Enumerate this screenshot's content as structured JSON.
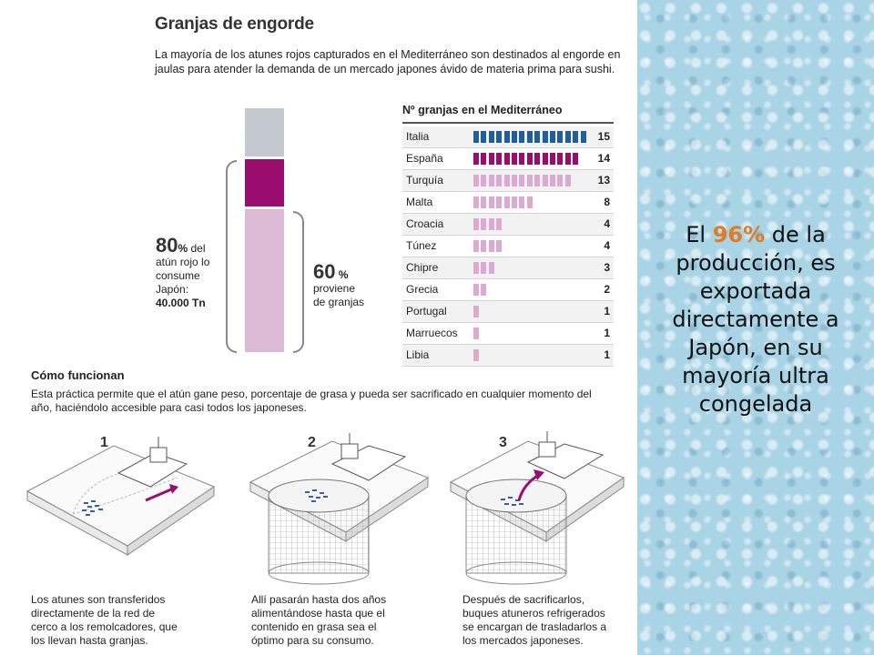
{
  "infographic": {
    "title": "Granjas de engorde",
    "intro": "La mayoría de los atunes rojos capturados en el Mediterráneo son destinados al engorde en jaulas para atender la demanda de un mercado japones ávido de materia prima para sushi.",
    "stack": {
      "left_note": {
        "value": "80",
        "pct": "%",
        "rest1": " del",
        "line2": "atún rojo lo",
        "line3": "consume",
        "line4": "Japón:",
        "line5": "40.000 Tn"
      },
      "right_note": {
        "value": "60",
        "pct": "%",
        "line2": "proviene",
        "line3": "de granjas"
      },
      "colors": {
        "top": "#c4c8cf",
        "middle": "#9a0d6e",
        "bottom": "#dcbad5"
      }
    },
    "farms": {
      "title": "Nº granjas en el Mediterráneo",
      "rows": [
        {
          "country": "Italia",
          "count": 15,
          "label": "15",
          "color": "#1f5f9e"
        },
        {
          "country": "España",
          "count": 14,
          "label": "14",
          "color": "#9a0d6e"
        },
        {
          "country": "Turquía",
          "count": 13,
          "label": "13",
          "color": "#dcaad0"
        },
        {
          "country": "Malta",
          "count": 8,
          "label": "8",
          "color": "#dcaad0"
        },
        {
          "country": "Croacia",
          "count": 4,
          "label": "4",
          "color": "#dcaad0"
        },
        {
          "country": "Túnez",
          "count": 4,
          "label": "4",
          "color": "#dcaad0"
        },
        {
          "country": "Chipre",
          "count": 3,
          "label": "3",
          "color": "#dcaad0"
        },
        {
          "country": "Grecia",
          "count": 2,
          "label": "2",
          "color": "#dcaad0"
        },
        {
          "country": "Portugal",
          "count": 1,
          "label": "1",
          "color": "#dcaad0"
        },
        {
          "country": "Marruecos",
          "count": 1,
          "label": "1",
          "color": "#dcaad0"
        },
        {
          "country": "Libia",
          "count": 1,
          "label": "1",
          "color": "#dcaad0"
        }
      ]
    },
    "how": {
      "title": "Cómo funcionan",
      "text": "Esta práctica permite que el atún gane peso, porcentaje de grasa y pueda ser sacrificado en cualquier momento del año, haciéndolo accesible para casi todos los japoneses.",
      "steps": [
        {
          "number": "1",
          "caption_lines": [
            "Los atunes son transferidos",
            "directamente de la red de",
            "cerco a los remolcadores, que",
            "los llevan hasta granjas."
          ]
        },
        {
          "number": "2",
          "caption_lines": [
            "Allí pasarán hasta dos años",
            "alimentándose hasta que el",
            "contenido en grasa sea el",
            "óptimo para su consumo."
          ]
        },
        {
          "number": "3",
          "caption_lines": [
            "Después de sacrificarlos,",
            "buques atuneros refrigerados",
            "se encargan de trasladarlos a",
            "los mercados japoneses."
          ]
        }
      ]
    }
  },
  "side": {
    "pre": "El ",
    "highlight": "96%",
    "post": " de la producción, es exportada directamente a Japón, en su mayoría ultra congelada",
    "highlight_color": "#e07b28"
  }
}
